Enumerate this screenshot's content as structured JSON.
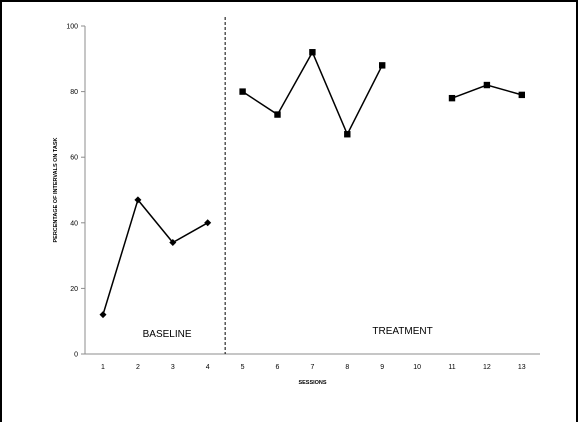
{
  "chart_data": {
    "type": "line",
    "title": "",
    "xlabel": "SESSIONS",
    "ylabel": "PERCENTAGE OF INTERVALS ON TASK",
    "categories": [
      "1",
      "2",
      "3",
      "4",
      "5",
      "6",
      "7",
      "8",
      "9",
      "10",
      "11",
      "12",
      "13"
    ],
    "ylim": [
      0,
      100
    ],
    "yticks": [
      0,
      20,
      40,
      60,
      80,
      100
    ],
    "grid": false,
    "legend": "none",
    "phase_change_after_session": 4,
    "phases": [
      {
        "label": "BASELINE",
        "marker": "diamond"
      },
      {
        "label": "TREATMENT",
        "marker": "square"
      }
    ],
    "series": [
      {
        "phase": 0,
        "segment": 0,
        "points": [
          [
            1,
            12
          ],
          [
            2,
            47
          ],
          [
            3,
            34
          ],
          [
            4,
            40
          ]
        ]
      },
      {
        "phase": 1,
        "segment": 0,
        "points": [
          [
            5,
            80
          ],
          [
            6,
            73
          ],
          [
            7,
            92
          ],
          [
            8,
            67
          ],
          [
            9,
            88
          ]
        ]
      },
      {
        "phase": 1,
        "segment": 1,
        "points": [
          [
            11,
            78
          ],
          [
            12,
            82
          ],
          [
            13,
            79
          ]
        ]
      }
    ],
    "colors": {
      "line": "#000000",
      "marker": "#000000",
      "axis": "#8c8c8c"
    }
  }
}
